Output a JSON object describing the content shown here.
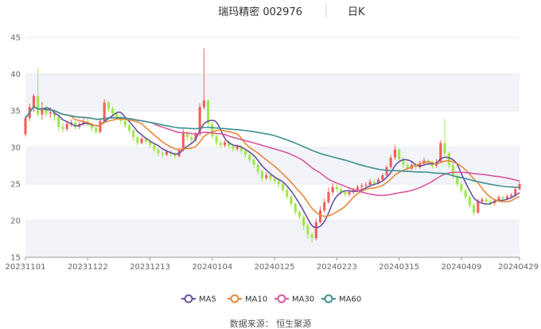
{
  "title": {
    "stock": "瑞玛精密 002976",
    "period": "日K"
  },
  "source": "数据来源： 恒生聚源",
  "chart_data": {
    "type": "candlestick",
    "ylim": [
      15,
      45
    ],
    "yticks": [
      15,
      20,
      25,
      30,
      35,
      40,
      45
    ],
    "xticks": [
      {
        "index": 0,
        "label": "20231101"
      },
      {
        "index": 15,
        "label": "20231122"
      },
      {
        "index": 30,
        "label": "20231213"
      },
      {
        "index": 45,
        "label": "20240104"
      },
      {
        "index": 60,
        "label": "20240125"
      },
      {
        "index": 75,
        "label": "20240223"
      },
      {
        "index": 90,
        "label": "20240315"
      },
      {
        "index": 105,
        "label": "20240409"
      },
      {
        "index": 119,
        "label": "20240429"
      }
    ],
    "colors": {
      "up": "#f0605c",
      "down": "#9ee846",
      "grid_band": "#f2f4f9",
      "axis": "#999999"
    },
    "ma": [
      {
        "name": "MA5",
        "color": "#6a4fa0"
      },
      {
        "name": "MA10",
        "color": "#e8883a"
      },
      {
        "name": "MA30",
        "color": "#d9569f"
      },
      {
        "name": "MA60",
        "color": "#3e918f"
      }
    ],
    "candles": [
      [
        31.8,
        34.0,
        31.5,
        34.3
      ],
      [
        34.0,
        35.5,
        33.6,
        36.0
      ],
      [
        35.5,
        37.0,
        34.8,
        37.3
      ],
      [
        37.0,
        34.5,
        34.2,
        40.8
      ],
      [
        34.5,
        35.3,
        33.8,
        36.2
      ],
      [
        35.3,
        34.6,
        34.2,
        35.8
      ],
      [
        34.6,
        34.8,
        34.0,
        35.4
      ],
      [
        34.8,
        34.2,
        33.6,
        35.2
      ],
      [
        34.2,
        32.8,
        32.3,
        34.5
      ],
      [
        32.8,
        32.5,
        32.0,
        33.4
      ],
      [
        32.5,
        33.2,
        32.2,
        33.6
      ],
      [
        33.2,
        33.4,
        32.8,
        33.8
      ],
      [
        33.4,
        32.8,
        32.4,
        33.7
      ],
      [
        32.8,
        33.2,
        32.5,
        33.5
      ],
      [
        33.2,
        33.6,
        32.9,
        34.0
      ],
      [
        33.6,
        33.2,
        32.8,
        33.9
      ],
      [
        33.2,
        32.6,
        32.1,
        33.4
      ],
      [
        32.6,
        32.1,
        31.8,
        32.8
      ],
      [
        32.1,
        33.6,
        31.9,
        34.0
      ],
      [
        33.6,
        36.1,
        33.4,
        36.6
      ],
      [
        36.1,
        35.3,
        34.8,
        36.4
      ],
      [
        35.3,
        34.6,
        34.2,
        35.6
      ],
      [
        34.6,
        34.1,
        33.8,
        34.9
      ],
      [
        34.1,
        33.6,
        33.2,
        34.4
      ],
      [
        33.6,
        33.0,
        32.6,
        33.9
      ],
      [
        33.0,
        32.3,
        31.9,
        33.2
      ],
      [
        32.3,
        31.4,
        30.9,
        32.5
      ],
      [
        31.4,
        30.6,
        30.2,
        31.6
      ],
      [
        30.6,
        31.2,
        30.4,
        31.5
      ],
      [
        31.2,
        30.8,
        30.5,
        31.4
      ],
      [
        30.8,
        30.3,
        29.9,
        31.0
      ],
      [
        30.3,
        29.7,
        29.3,
        30.6
      ],
      [
        29.7,
        29.2,
        28.8,
        30.0
      ],
      [
        29.2,
        29.0,
        28.6,
        29.5
      ],
      [
        29.0,
        29.4,
        28.8,
        29.7
      ],
      [
        29.4,
        29.1,
        28.7,
        29.6
      ],
      [
        29.1,
        28.8,
        28.4,
        29.3
      ],
      [
        28.8,
        29.6,
        28.6,
        29.9
      ],
      [
        29.6,
        31.9,
        29.4,
        32.5
      ],
      [
        31.9,
        31.4,
        30.9,
        32.2
      ],
      [
        31.4,
        31.0,
        30.6,
        31.7
      ],
      [
        31.0,
        31.8,
        30.8,
        32.1
      ],
      [
        31.8,
        35.5,
        31.5,
        36.0
      ],
      [
        35.5,
        36.4,
        35.2,
        43.5
      ],
      [
        36.4,
        33.2,
        32.8,
        36.6
      ],
      [
        33.2,
        31.5,
        31.2,
        33.5
      ],
      [
        31.5,
        30.6,
        30.2,
        31.8
      ],
      [
        30.6,
        30.3,
        29.9,
        31.0
      ],
      [
        30.3,
        30.7,
        30.0,
        31.0
      ],
      [
        30.7,
        30.2,
        29.8,
        31.0
      ],
      [
        30.2,
        29.8,
        29.4,
        30.4
      ],
      [
        29.8,
        30.1,
        29.5,
        30.4
      ],
      [
        30.1,
        29.5,
        29.1,
        30.3
      ],
      [
        29.5,
        29.0,
        28.6,
        29.8
      ],
      [
        29.0,
        28.3,
        27.9,
        29.2
      ],
      [
        28.3,
        27.6,
        27.2,
        28.6
      ],
      [
        27.6,
        26.7,
        26.3,
        27.9
      ],
      [
        26.7,
        25.8,
        25.3,
        27.0
      ],
      [
        25.8,
        26.2,
        25.5,
        26.6
      ],
      [
        26.2,
        25.7,
        25.3,
        26.5
      ],
      [
        25.7,
        25.4,
        25.0,
        26.1
      ],
      [
        25.4,
        25.0,
        24.5,
        25.8
      ],
      [
        25.0,
        24.2,
        23.8,
        25.3
      ],
      [
        24.2,
        23.3,
        22.9,
        24.4
      ],
      [
        23.3,
        22.3,
        21.9,
        23.6
      ],
      [
        22.3,
        21.2,
        20.8,
        22.5
      ],
      [
        21.2,
        20.5,
        20.1,
        21.4
      ],
      [
        20.5,
        19.3,
        18.8,
        20.8
      ],
      [
        19.3,
        18.1,
        17.5,
        19.6
      ],
      [
        18.1,
        17.6,
        17.0,
        18.4
      ],
      [
        17.6,
        19.8,
        17.3,
        20.3
      ],
      [
        19.8,
        21.4,
        19.6,
        21.9
      ],
      [
        21.4,
        22.5,
        21.1,
        23.0
      ],
      [
        22.5,
        23.9,
        22.3,
        24.5
      ],
      [
        23.9,
        24.6,
        23.5,
        25.1
      ],
      [
        24.6,
        24.3,
        23.9,
        25.0
      ],
      [
        24.3,
        23.9,
        23.5,
        24.6
      ],
      [
        23.9,
        23.6,
        23.2,
        24.2
      ],
      [
        23.6,
        23.9,
        23.3,
        24.3
      ],
      [
        23.9,
        24.2,
        23.6,
        24.5
      ],
      [
        24.2,
        24.6,
        23.9,
        24.9
      ],
      [
        24.6,
        24.8,
        24.3,
        25.1
      ],
      [
        24.8,
        24.9,
        24.5,
        25.3
      ],
      [
        24.9,
        25.3,
        24.6,
        25.7
      ],
      [
        25.3,
        25.1,
        24.8,
        25.6
      ],
      [
        25.1,
        25.6,
        24.9,
        25.9
      ],
      [
        25.6,
        26.2,
        25.4,
        26.5
      ],
      [
        26.2,
        27.3,
        26.0,
        27.6
      ],
      [
        27.3,
        28.6,
        27.1,
        29.0
      ],
      [
        28.6,
        29.7,
        28.3,
        30.3
      ],
      [
        29.7,
        28.4,
        28.0,
        29.9
      ],
      [
        28.4,
        27.6,
        27.2,
        28.7
      ],
      [
        27.6,
        27.1,
        26.8,
        27.9
      ],
      [
        27.1,
        27.6,
        26.9,
        28.0
      ],
      [
        27.6,
        27.3,
        27.0,
        27.9
      ],
      [
        27.3,
        27.8,
        27.1,
        28.2
      ],
      [
        27.8,
        28.2,
        27.5,
        28.6
      ],
      [
        28.2,
        27.9,
        27.5,
        28.4
      ],
      [
        27.9,
        27.5,
        27.1,
        28.2
      ],
      [
        27.5,
        28.0,
        27.2,
        28.4
      ],
      [
        28.0,
        30.6,
        27.8,
        31.0
      ],
      [
        30.6,
        29.2,
        28.8,
        33.9
      ],
      [
        29.2,
        27.6,
        27.2,
        29.4
      ],
      [
        27.6,
        26.1,
        25.7,
        27.9
      ],
      [
        26.1,
        25.0,
        24.6,
        26.4
      ],
      [
        25.0,
        24.1,
        23.7,
        25.3
      ],
      [
        24.1,
        23.2,
        22.8,
        24.4
      ],
      [
        23.2,
        22.1,
        21.7,
        23.5
      ],
      [
        22.1,
        21.1,
        20.7,
        22.3
      ],
      [
        21.1,
        22.6,
        20.9,
        23.0
      ],
      [
        22.6,
        22.9,
        22.3,
        23.2
      ],
      [
        22.9,
        22.6,
        22.2,
        23.2
      ],
      [
        22.6,
        22.4,
        22.0,
        22.9
      ],
      [
        22.4,
        22.7,
        22.1,
        23.0
      ],
      [
        22.7,
        23.2,
        22.5,
        23.5
      ],
      [
        23.2,
        23.0,
        22.7,
        23.4
      ],
      [
        23.0,
        23.3,
        22.8,
        23.6
      ],
      [
        23.3,
        23.5,
        23.0,
        23.8
      ],
      [
        23.5,
        24.3,
        23.3,
        24.6
      ],
      [
        24.3,
        25.0,
        24.1,
        25.3
      ]
    ]
  }
}
